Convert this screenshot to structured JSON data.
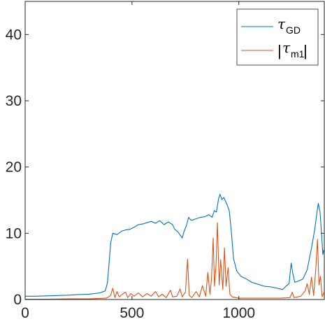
{
  "chart_data": {
    "type": "line",
    "title": "",
    "xlabel": "",
    "ylabel": "",
    "xlim": [
      0,
      1400
    ],
    "ylim": [
      0,
      45
    ],
    "x_ticks": [
      0,
      500,
      1000
    ],
    "y_ticks": [
      0,
      10,
      20,
      30,
      40
    ],
    "x_tick_labels": [
      "0",
      "500",
      "1000"
    ],
    "y_tick_labels": [
      "0",
      "10",
      "20",
      "30",
      "40"
    ],
    "grid": false,
    "legend_position": "top-right",
    "series": [
      {
        "name": "τGD",
        "legend": {
          "main": "τ",
          "sub": "GD"
        },
        "color": "#0072BD",
        "points": [
          [
            0,
            0.5
          ],
          [
            50,
            0.5
          ],
          [
            100,
            0.55
          ],
          [
            150,
            0.6
          ],
          [
            200,
            0.65
          ],
          [
            250,
            0.75
          ],
          [
            300,
            0.8
          ],
          [
            350,
            1.0
          ],
          [
            375,
            1.3
          ],
          [
            385,
            2.5
          ],
          [
            393,
            5.5
          ],
          [
            400,
            8.5
          ],
          [
            410,
            10.0
          ],
          [
            430,
            9.8
          ],
          [
            450,
            10.3
          ],
          [
            470,
            10.5
          ],
          [
            490,
            10.6
          ],
          [
            510,
            10.9
          ],
          [
            530,
            11.3
          ],
          [
            550,
            11.4
          ],
          [
            570,
            11.6
          ],
          [
            590,
            11.8
          ],
          [
            610,
            11.5
          ],
          [
            630,
            11.9
          ],
          [
            650,
            11.3
          ],
          [
            670,
            11.7
          ],
          [
            690,
            11.3
          ],
          [
            700,
            10.6
          ],
          [
            715,
            10.2
          ],
          [
            735,
            9.3
          ],
          [
            745,
            10.4
          ],
          [
            755,
            11.2
          ],
          [
            765,
            12.4
          ],
          [
            775,
            12.0
          ],
          [
            785,
            12.0
          ],
          [
            800,
            12.2
          ],
          [
            820,
            12.4
          ],
          [
            840,
            12.5
          ],
          [
            860,
            12.8
          ],
          [
            875,
            12.4
          ],
          [
            885,
            13.4
          ],
          [
            895,
            13.2
          ],
          [
            905,
            15.2
          ],
          [
            912,
            15.9
          ],
          [
            920,
            15.1
          ],
          [
            930,
            15.4
          ],
          [
            945,
            14.3
          ],
          [
            955,
            13.4
          ],
          [
            965,
            10.2
          ],
          [
            975,
            6.2
          ],
          [
            990,
            4.3
          ],
          [
            1010,
            3.5
          ],
          [
            1030,
            3.2
          ],
          [
            1060,
            2.6
          ],
          [
            1090,
            2.3
          ],
          [
            1120,
            2.0
          ],
          [
            1150,
            1.9
          ],
          [
            1180,
            1.7
          ],
          [
            1205,
            1.5
          ],
          [
            1220,
            2.0
          ],
          [
            1235,
            2.4
          ],
          [
            1245,
            5.5
          ],
          [
            1252,
            4.0
          ],
          [
            1262,
            2.6
          ],
          [
            1280,
            2.8
          ],
          [
            1300,
            3.1
          ],
          [
            1320,
            4.5
          ],
          [
            1340,
            7.8
          ],
          [
            1355,
            10.5
          ],
          [
            1365,
            13.0
          ],
          [
            1372,
            14.5
          ],
          [
            1380,
            13.2
          ],
          [
            1388,
            9.5
          ],
          [
            1393,
            6.8
          ],
          [
            1398,
            7.5
          ]
        ]
      },
      {
        "name": "|τm1|",
        "legend": {
          "main": "τ",
          "sub": "m1",
          "abs": true
        },
        "color": "#D95319",
        "points": [
          [
            0,
            0.05
          ],
          [
            100,
            0.05
          ],
          [
            200,
            0.1
          ],
          [
            300,
            0.1
          ],
          [
            380,
            0.2
          ],
          [
            400,
            0.6
          ],
          [
            410,
            1.7
          ],
          [
            420,
            0.3
          ],
          [
            430,
            1.2
          ],
          [
            440,
            0.4
          ],
          [
            455,
            0.8
          ],
          [
            470,
            1.1
          ],
          [
            480,
            0.3
          ],
          [
            495,
            0.9
          ],
          [
            510,
            0.5
          ],
          [
            530,
            1.0
          ],
          [
            550,
            0.4
          ],
          [
            570,
            0.9
          ],
          [
            590,
            0.5
          ],
          [
            610,
            1.2
          ],
          [
            625,
            0.4
          ],
          [
            640,
            0.8
          ],
          [
            660,
            0.3
          ],
          [
            680,
            1.4
          ],
          [
            690,
            0.4
          ],
          [
            710,
            0.5
          ],
          [
            725,
            1.6
          ],
          [
            735,
            0.4
          ],
          [
            750,
            1.1
          ],
          [
            760,
            6.1
          ],
          [
            768,
            0.6
          ],
          [
            780,
            0.3
          ],
          [
            800,
            1.2
          ],
          [
            815,
            0.4
          ],
          [
            830,
            2.1
          ],
          [
            845,
            0.5
          ],
          [
            855,
            4.1
          ],
          [
            865,
            0.8
          ],
          [
            872,
            3.0
          ],
          [
            880,
            9.3
          ],
          [
            886,
            2.0
          ],
          [
            893,
            5.0
          ],
          [
            900,
            11.6
          ],
          [
            908,
            2.2
          ],
          [
            915,
            6.0
          ],
          [
            925,
            1.5
          ],
          [
            933,
            7.8
          ],
          [
            940,
            2.0
          ],
          [
            950,
            4.8
          ],
          [
            958,
            0.8
          ],
          [
            970,
            0.4
          ],
          [
            1000,
            0.2
          ],
          [
            1100,
            0.2
          ],
          [
            1200,
            0.2
          ],
          [
            1240,
            0.3
          ],
          [
            1250,
            1.1
          ],
          [
            1258,
            0.3
          ],
          [
            1290,
            0.5
          ],
          [
            1310,
            1.3
          ],
          [
            1320,
            2.4
          ],
          [
            1330,
            0.8
          ],
          [
            1340,
            3.4
          ],
          [
            1350,
            0.6
          ],
          [
            1360,
            4.5
          ],
          [
            1368,
            9.1
          ],
          [
            1375,
            2.2
          ],
          [
            1382,
            3.5
          ],
          [
            1390,
            0.4
          ],
          [
            1398,
            1.0
          ]
        ]
      }
    ]
  }
}
